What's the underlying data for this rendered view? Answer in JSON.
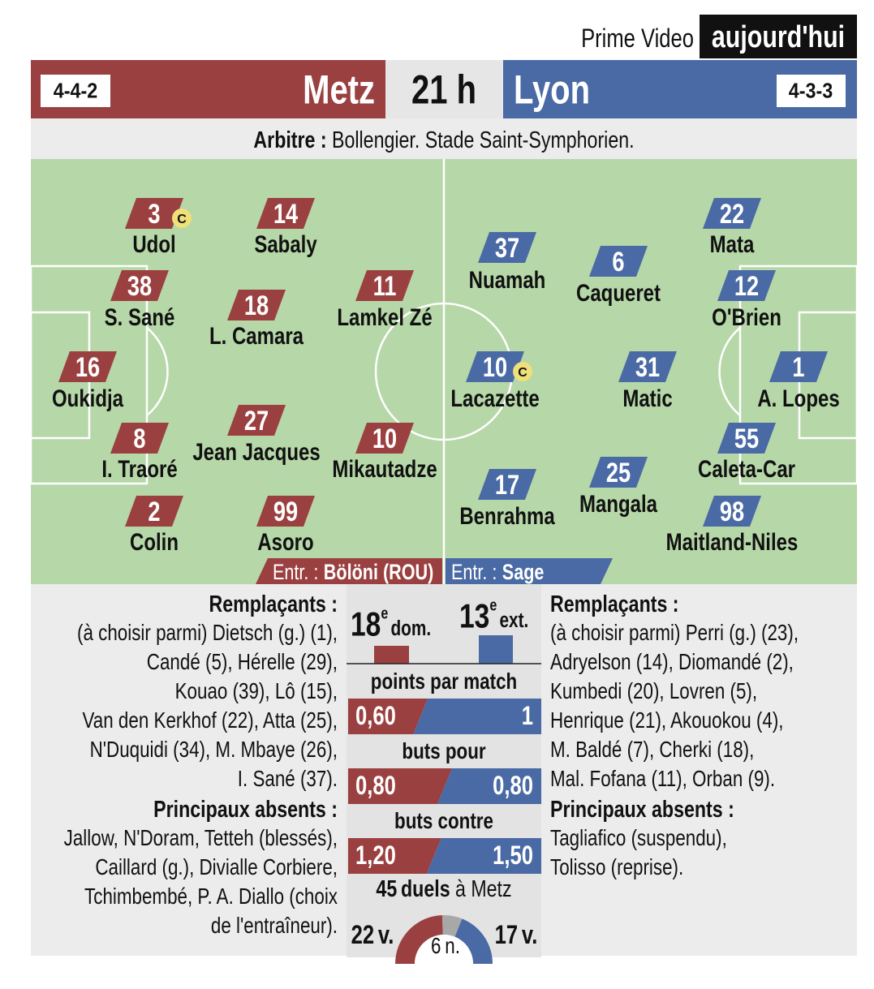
{
  "broadcast": {
    "channel": "Prime Video",
    "when": "aujourd'hui"
  },
  "match": {
    "kickoff": "21 h",
    "referee_label": "Arbitre :",
    "referee_info": "Bollengier. Stade Saint-Symphorien.",
    "coach_label": "Entr. :"
  },
  "home": {
    "name": "Metz",
    "formation": "4-4-2",
    "coach": "Bölöni (ROU)",
    "players": [
      {
        "number": 3,
        "name": "Udol",
        "armband": "C"
      },
      {
        "number": 14,
        "name": "Sabaly"
      },
      {
        "number": 38,
        "name": "S. Sané"
      },
      {
        "number": 18,
        "name": "L. Camara"
      },
      {
        "number": 11,
        "name": "Lamkel Zé"
      },
      {
        "number": 16,
        "name": "Oukidja"
      },
      {
        "number": 8,
        "name": "I. Traoré"
      },
      {
        "number": 27,
        "name": "Jean Jacques"
      },
      {
        "number": 10,
        "name": "Mikautadze"
      },
      {
        "number": 2,
        "name": "Colin"
      },
      {
        "number": 99,
        "name": "Asoro"
      }
    ],
    "substitutes_title": "Remplaçants :",
    "substitutes": [
      "(à choisir parmi) Dietsch (g.) (1),",
      "Candé (5), Hérelle (29),",
      "Kouao (39), Lô (15),",
      "Van den Kerkhof (22), Atta (25),",
      "N'Duquidi (34), M. Mbaye (26),",
      "I. Sané (37)."
    ],
    "absents_title": "Principaux absents :",
    "absents": [
      "Jallow, N'Doram, Tetteh (blessés),",
      "Caillard (g.), Divialle Corbiere,",
      "Tchimbembé, P. A. Diallo (choix",
      "de l'entraîneur)."
    ],
    "rank": 18,
    "rank_suffix": "e",
    "rank_label": "dom."
  },
  "away": {
    "name": "Lyon",
    "formation": "4-3-3",
    "coach": "Sage",
    "players": [
      {
        "number": 22,
        "name": "Mata"
      },
      {
        "number": 37,
        "name": "Nuamah"
      },
      {
        "number": 6,
        "name": "Caqueret"
      },
      {
        "number": 12,
        "name": "O'Brien"
      },
      {
        "number": 10,
        "name": "Lacazette",
        "armband": "C"
      },
      {
        "number": 31,
        "name": "Matic"
      },
      {
        "number": 1,
        "name": "A. Lopes"
      },
      {
        "number": 55,
        "name": "Caleta-Car"
      },
      {
        "number": 17,
        "name": "Benrahma"
      },
      {
        "number": 25,
        "name": "Mangala"
      },
      {
        "number": 98,
        "name": "Maitland-Niles"
      }
    ],
    "substitutes_title": "Remplaçants :",
    "substitutes": [
      "(à choisir parmi) Perri (g.) (23),",
      "Adryelson (14), Diomandé (2),",
      "Kumbedi (20), Lovren (5),",
      "Henrique (21), Akouokou (4),",
      "M. Baldé (7), Cherki (18),",
      "Mal. Fofana (11), Orban (9)."
    ],
    "absents_title": "Principaux absents :",
    "absents": [
      "Tagliafico (suspendu),",
      "Tolisso (reprise)."
    ],
    "rank": 13,
    "rank_suffix": "e",
    "rank_label": "ext."
  },
  "stats": [
    {
      "label": "points par match",
      "values": [
        0.6,
        1
      ],
      "value_labels": [
        "0,60",
        "1"
      ]
    },
    {
      "label": "buts pour",
      "values": [
        0.8,
        0.8
      ],
      "value_labels": [
        "0,80",
        "0,80"
      ]
    },
    {
      "label": "buts contre",
      "values": [
        1.2,
        1.5
      ],
      "value_labels": [
        "1,20",
        "1,50"
      ]
    }
  ],
  "duels": {
    "total": 45,
    "total_label": "duels",
    "venue": "à Metz",
    "home_wins": 22,
    "draws": 6,
    "away_wins": 17,
    "win_suffix": "v.",
    "draw_suffix": "n."
  }
}
